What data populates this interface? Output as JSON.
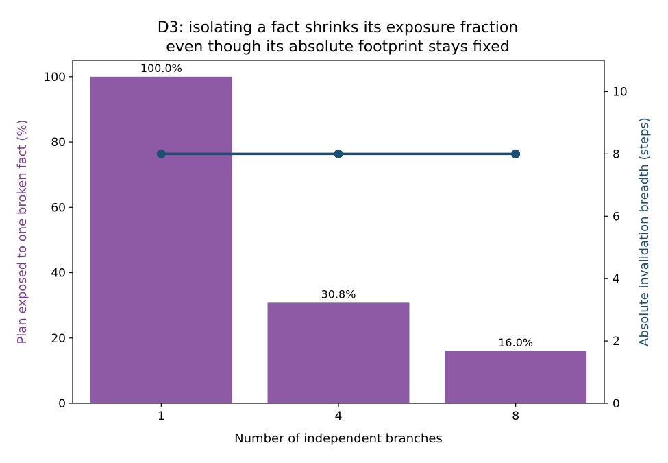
{
  "chart_data": {
    "type": "bar",
    "title_lines": [
      "D3: isolating a fact shrinks its exposure fraction",
      "even though its absolute footprint stays fixed"
    ],
    "xlabel": "Number of independent branches",
    "ylabel_left": "Plan exposed to one broken fact (%)",
    "ylabel_right": "Absolute invalidation breadth (steps)",
    "categories": [
      "1",
      "4",
      "8"
    ],
    "bar_series": {
      "values": [
        100.0,
        30.8,
        16.0
      ],
      "data_labels": [
        "100.0%",
        "30.8%",
        "16.0%"
      ],
      "color": "#8e5aa6"
    },
    "line_series": {
      "values": [
        8,
        8,
        8
      ],
      "color": "#1b4f72"
    },
    "ylim_left": [
      0,
      105
    ],
    "yticks_left": [
      0,
      20,
      40,
      60,
      80,
      100
    ],
    "ylim_right": [
      0,
      11
    ],
    "yticks_right": [
      0,
      2,
      4,
      6,
      8,
      10
    ],
    "left_label_color": "#7d3c98",
    "right_label_color": "#1b4f72",
    "grid": false
  }
}
